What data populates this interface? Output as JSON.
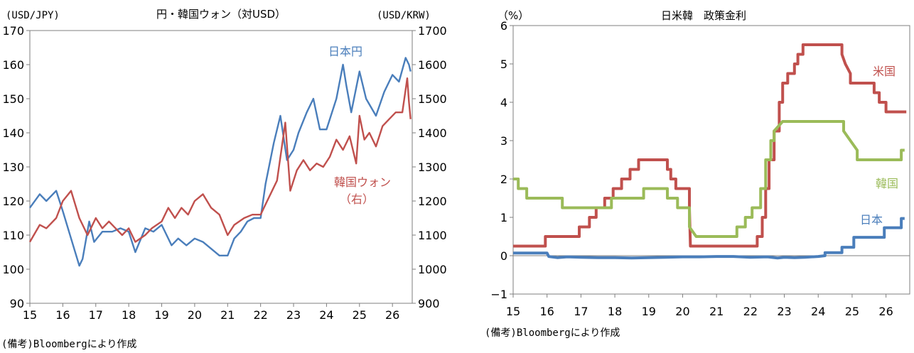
{
  "chart_data": [
    {
      "type": "line",
      "title": "円・韓国ウォン（対USD）",
      "ylabel_left": "(USD/JPY)",
      "ylabel_right": "(USD/KRW)",
      "ylim_left": [
        90,
        170
      ],
      "ylim_right": [
        900,
        1700
      ],
      "yticks_left": [
        "90",
        "100",
        "110",
        "120",
        "130",
        "140",
        "150",
        "160",
        "170"
      ],
      "yticks_right": [
        "900",
        "1000",
        "1100",
        "1200",
        "1300",
        "1400",
        "1500",
        "1600",
        "1700"
      ],
      "xlim": [
        15,
        26.6
      ],
      "xticks": [
        "15",
        "16",
        "17",
        "18",
        "19",
        "20",
        "21",
        "22",
        "23",
        "24",
        "25",
        "26"
      ],
      "note": "(備考)Bloombergにより作成",
      "series": [
        {
          "name": "日本円",
          "axis": "left",
          "color": "#4a7ebb",
          "x": [
            15.0,
            15.3,
            15.5,
            15.8,
            16.0,
            16.25,
            16.5,
            16.6,
            16.8,
            16.95,
            17.2,
            17.5,
            17.75,
            18.0,
            18.2,
            18.5,
            18.75,
            19.0,
            19.3,
            19.5,
            19.75,
            20.0,
            20.25,
            20.5,
            20.75,
            21.0,
            21.2,
            21.4,
            21.6,
            21.8,
            22.0,
            22.15,
            22.4,
            22.6,
            22.8,
            23.0,
            23.15,
            23.4,
            23.6,
            23.8,
            24.0,
            24.3,
            24.5,
            24.6,
            24.75,
            25.0,
            25.2,
            25.5,
            25.75,
            26.0,
            26.2,
            26.4,
            26.5,
            26.55
          ],
          "y": [
            118,
            122,
            120,
            123,
            117,
            109,
            101,
            103,
            114,
            108,
            111,
            111,
            112,
            111,
            105,
            112,
            111,
            113,
            107,
            109,
            107,
            109,
            108,
            106,
            104,
            104,
            109,
            111,
            114,
            115,
            115,
            125,
            137,
            145,
            132,
            135,
            140,
            146,
            150,
            141,
            141,
            150,
            160,
            154,
            146,
            158,
            150,
            145,
            152,
            157,
            155,
            162,
            160,
            158
          ]
        },
        {
          "name": "韓国ウォン（右）",
          "axis": "right",
          "color": "#c0504d",
          "x": [
            15.0,
            15.3,
            15.5,
            15.8,
            16.0,
            16.25,
            16.5,
            16.75,
            17.0,
            17.2,
            17.4,
            17.6,
            17.8,
            18.0,
            18.2,
            18.5,
            18.7,
            19.0,
            19.2,
            19.4,
            19.6,
            19.8,
            20.0,
            20.25,
            20.5,
            20.75,
            21.0,
            21.2,
            21.5,
            21.75,
            22.0,
            22.2,
            22.5,
            22.75,
            22.9,
            23.1,
            23.3,
            23.5,
            23.7,
            23.9,
            24.1,
            24.3,
            24.5,
            24.7,
            24.9,
            25.0,
            25.15,
            25.3,
            25.5,
            25.7,
            25.9,
            26.1,
            26.3,
            26.45,
            26.5,
            26.55
          ],
          "y": [
            1080,
            1130,
            1120,
            1150,
            1200,
            1230,
            1150,
            1100,
            1150,
            1120,
            1140,
            1120,
            1100,
            1120,
            1080,
            1100,
            1120,
            1140,
            1180,
            1150,
            1180,
            1160,
            1200,
            1220,
            1180,
            1160,
            1100,
            1130,
            1150,
            1160,
            1160,
            1200,
            1260,
            1430,
            1230,
            1290,
            1320,
            1290,
            1310,
            1300,
            1330,
            1380,
            1350,
            1390,
            1310,
            1450,
            1380,
            1400,
            1360,
            1420,
            1440,
            1460,
            1460,
            1560,
            1490,
            1440
          ]
        }
      ],
      "labels": {
        "jp": "日本円",
        "kr_line1": "韓国ウォン",
        "kr_line2": "（右）"
      }
    },
    {
      "type": "line",
      "title": "日米韓　政策金利",
      "ylabel": "（%）",
      "ylim": [
        -1,
        6
      ],
      "yticks": [
        "−1",
        "0",
        "1",
        "2",
        "3",
        "4",
        "5",
        "6"
      ],
      "xlim": [
        15,
        26.7
      ],
      "xticks": [
        "15",
        "16",
        "17",
        "18",
        "19",
        "20",
        "21",
        "22",
        "23",
        "24",
        "25",
        "26"
      ],
      "note": "(備考)Bloombergにより作成",
      "series": [
        {
          "name": "米国",
          "color": "#c0504d",
          "x": [
            15.0,
            15.95,
            15.95,
            16.95,
            16.95,
            17.25,
            17.25,
            17.45,
            17.45,
            17.7,
            17.7,
            17.95,
            17.95,
            18.2,
            18.2,
            18.45,
            18.45,
            18.7,
            18.7,
            18.95,
            18.95,
            19.55,
            19.55,
            19.65,
            19.65,
            19.8,
            19.8,
            20.2,
            20.2,
            20.23,
            20.23,
            22.2,
            22.2,
            22.35,
            22.35,
            22.45,
            22.45,
            22.55,
            22.55,
            22.7,
            22.7,
            22.85,
            22.85,
            22.95,
            22.95,
            23.1,
            23.1,
            23.3,
            23.3,
            23.4,
            23.4,
            23.55,
            23.55,
            24.7,
            24.7,
            24.8,
            24.8,
            24.95,
            24.95,
            25.65,
            25.65,
            25.8,
            25.8,
            26.0,
            26.0,
            26.6
          ],
          "y": [
            0.25,
            0.25,
            0.5,
            0.5,
            0.75,
            0.75,
            1.0,
            1.0,
            1.25,
            1.25,
            1.5,
            1.5,
            1.75,
            1.75,
            2.0,
            2.0,
            2.25,
            2.25,
            2.5,
            2.5,
            2.5,
            2.5,
            2.25,
            2.25,
            2.0,
            2.0,
            1.75,
            1.75,
            1.25,
            0.25,
            0.25,
            0.25,
            0.5,
            0.5,
            1.0,
            1.0,
            1.75,
            1.75,
            2.5,
            2.5,
            3.25,
            3.25,
            4.0,
            4.0,
            4.5,
            4.5,
            4.75,
            4.75,
            5.0,
            5.0,
            5.25,
            5.25,
            5.5,
            5.5,
            5.25,
            5.0,
            5.0,
            4.75,
            4.5,
            4.5,
            4.25,
            4.25,
            4.0,
            4.0,
            3.75,
            3.75
          ]
        },
        {
          "name": "韓国",
          "color": "#9bbb59",
          "x": [
            15.0,
            15.15,
            15.15,
            15.4,
            15.4,
            16.45,
            16.45,
            17.9,
            17.9,
            18.85,
            18.85,
            19.55,
            19.55,
            19.85,
            19.85,
            20.2,
            20.2,
            20.4,
            20.4,
            21.6,
            21.6,
            21.85,
            21.85,
            22.05,
            22.05,
            22.3,
            22.3,
            22.45,
            22.45,
            22.6,
            22.6,
            22.7,
            22.7,
            22.95,
            22.95,
            24.75,
            24.75,
            24.95,
            24.95,
            25.15,
            25.15,
            26.45,
            26.45,
            26.55
          ],
          "y": [
            2.0,
            2.0,
            1.75,
            1.75,
            1.5,
            1.5,
            1.25,
            1.25,
            1.5,
            1.5,
            1.75,
            1.75,
            1.5,
            1.5,
            1.25,
            1.25,
            0.75,
            0.5,
            0.5,
            0.5,
            0.75,
            0.75,
            1.0,
            1.0,
            1.25,
            1.25,
            1.75,
            1.75,
            2.5,
            2.5,
            3.0,
            3.0,
            3.25,
            3.5,
            3.5,
            3.5,
            3.25,
            3.0,
            3.0,
            2.75,
            2.5,
            2.5,
            2.75,
            2.75
          ]
        },
        {
          "name": "日本",
          "color": "#4a7ebb",
          "x": [
            15.0,
            16.0,
            16.05,
            16.3,
            16.6,
            17.0,
            17.5,
            18.0,
            18.5,
            19.0,
            19.5,
            20.0,
            20.5,
            21.0,
            21.5,
            22.0,
            22.5,
            22.8,
            23.0,
            23.3,
            23.6,
            24.0,
            24.2,
            24.2,
            24.7,
            24.7,
            25.05,
            25.05,
            25.95,
            25.95,
            26.45,
            26.45,
            26.55
          ],
          "y": [
            0.07,
            0.07,
            -0.02,
            -0.05,
            -0.03,
            -0.04,
            -0.05,
            -0.05,
            -0.06,
            -0.05,
            -0.04,
            -0.03,
            -0.03,
            -0.02,
            -0.02,
            -0.04,
            -0.03,
            -0.06,
            -0.04,
            -0.05,
            -0.04,
            -0.02,
            0.0,
            0.08,
            0.08,
            0.22,
            0.22,
            0.48,
            0.48,
            0.73,
            0.73,
            0.97,
            0.97
          ]
        }
      ],
      "labels": {
        "us": "米国",
        "kr": "韓国",
        "jp": "日本"
      }
    }
  ]
}
